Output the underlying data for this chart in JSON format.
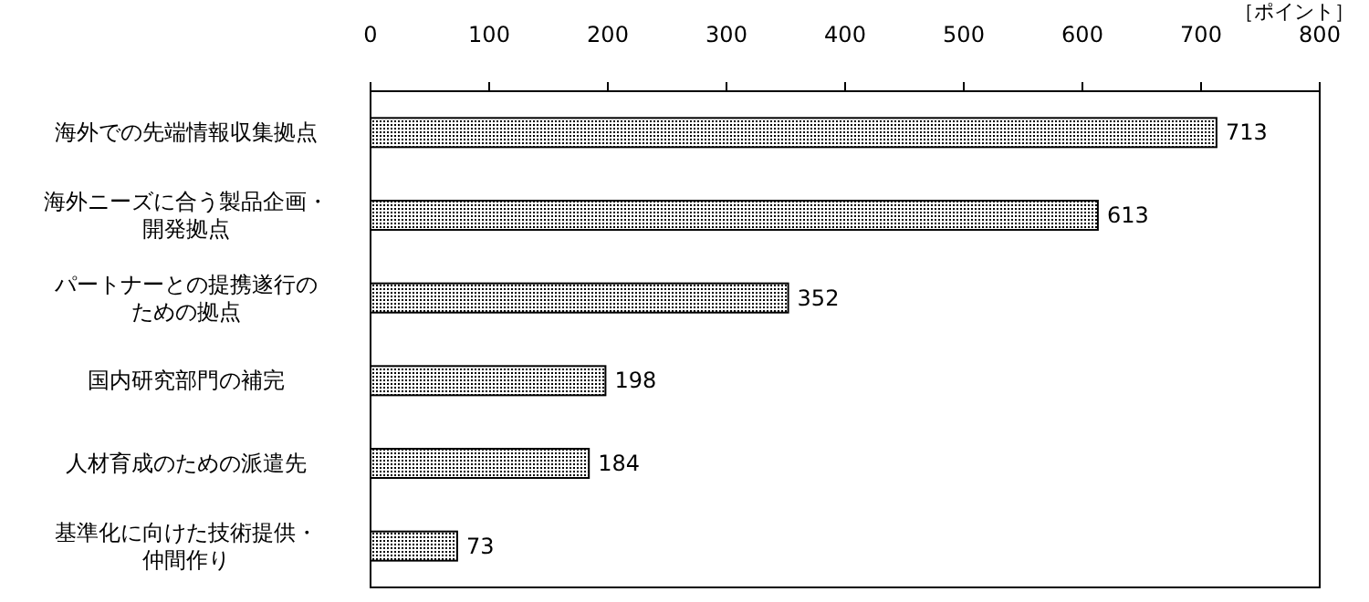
{
  "chart_data": {
    "type": "bar",
    "orientation": "horizontal",
    "categories": [
      "海外での先端情報収集拠点",
      "海外ニーズに合う製品企画・開発拠点",
      "パートナーとの提携遂行のための拠点",
      "国内研究部門の補完",
      "人材育成のための派遣先",
      "基準化に向けた技術提供・仲間作り"
    ],
    "values": [
      713,
      613,
      352,
      198,
      184,
      73
    ],
    "color": "#000000",
    "xlim": [
      0,
      800
    ],
    "xticks": [
      0,
      100,
      200,
      300,
      400,
      500,
      600,
      700,
      800
    ],
    "xlabel": "［ポイント］",
    "data_labels": true,
    "grid": false
  }
}
